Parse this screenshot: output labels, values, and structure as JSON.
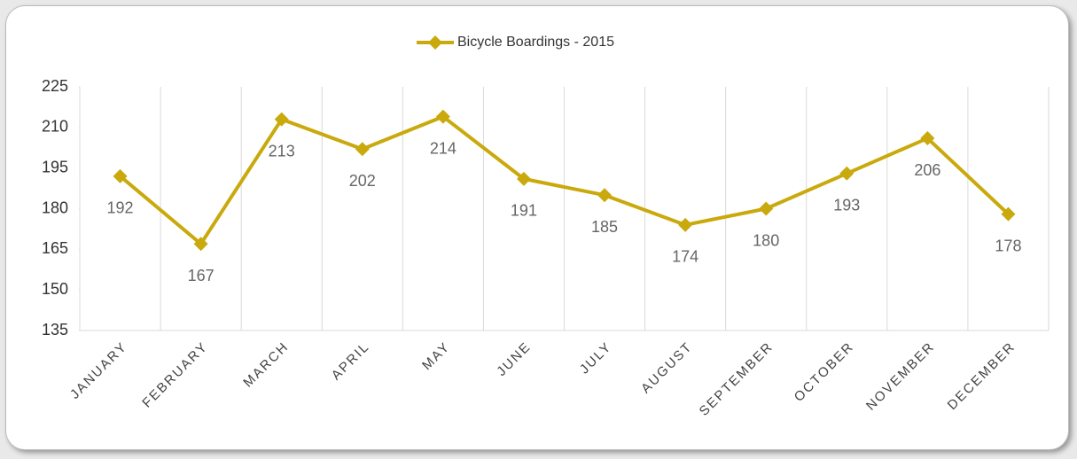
{
  "chart_data": {
    "type": "line",
    "categories": [
      "JANUARY",
      "FEBRUARY",
      "MARCH",
      "APRIL",
      "MAY",
      "JUNE",
      "JULY",
      "AUGUST",
      "SEPTEMBER",
      "OCTOBER",
      "NOVEMBER",
      "DECEMBER"
    ],
    "series": [
      {
        "name": "Bicycle Boardings - 2015",
        "color": "#c9a90c",
        "values": [
          192,
          167,
          213,
          202,
          214,
          191,
          185,
          174,
          180,
          193,
          206,
          178
        ]
      }
    ],
    "ylim": [
      135,
      225
    ],
    "yticks": [
      135,
      150,
      165,
      180,
      195,
      210,
      225
    ],
    "grid": true,
    "legend": "top",
    "data_labels": true
  }
}
